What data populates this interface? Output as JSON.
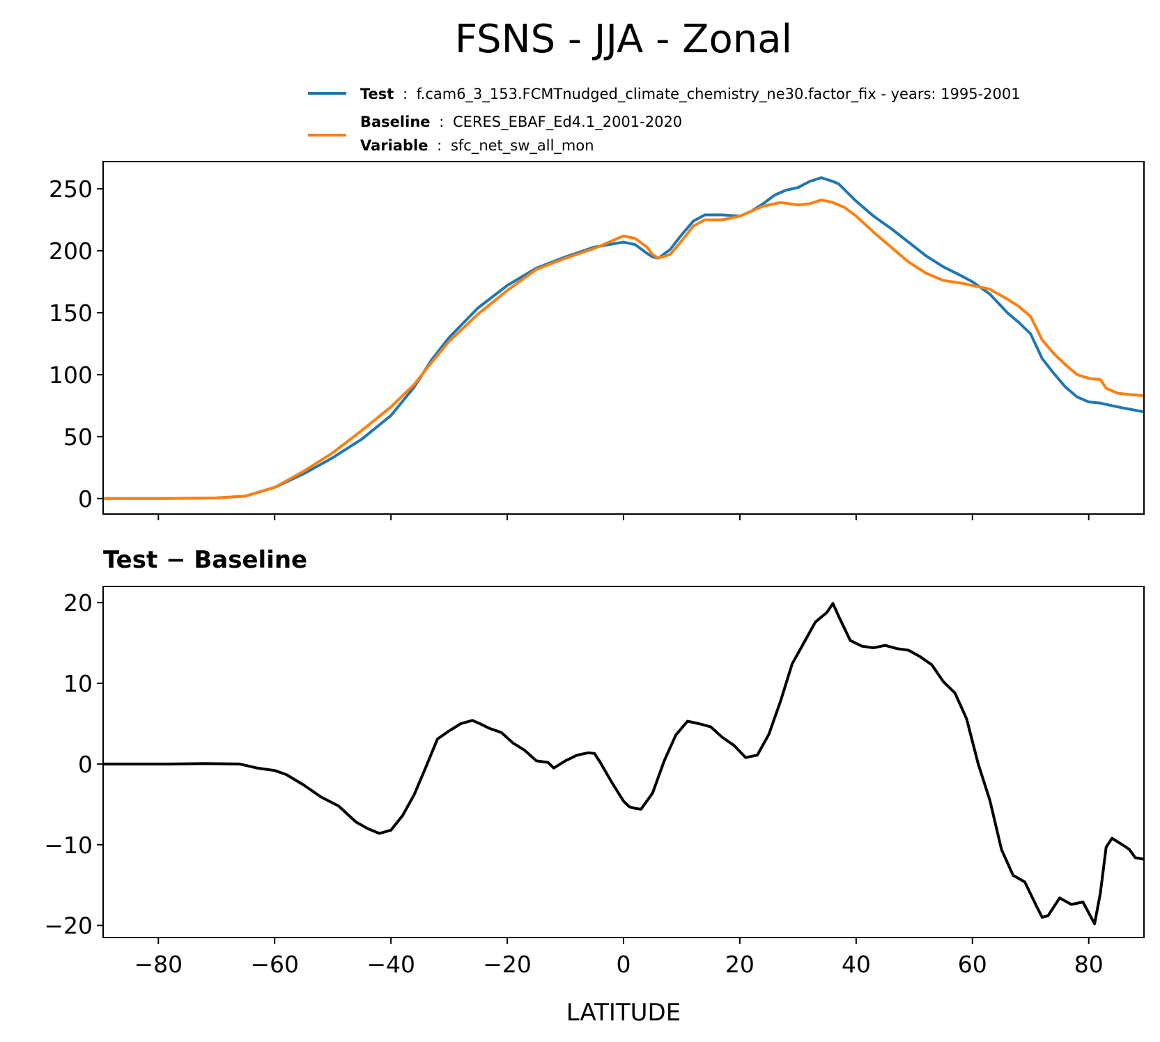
{
  "title": "FSNS - JJA - Zonal",
  "legend": {
    "test_label": "Test",
    "test_value": "f.cam6_3_153.FCMTnudged_climate_chemistry_ne30.factor_fix - years: 1995-2001",
    "baseline_label": "Baseline",
    "baseline_value": "CERES_EBAF_Ed4.1_2001-2020",
    "variable_label": "Variable",
    "variable_value": "sfc_net_sw_all_mon",
    "separator": ":"
  },
  "colors": {
    "test": "#1f77b4",
    "baseline": "#ff7f0e",
    "diff": "#000000"
  },
  "chart_data": [
    {
      "type": "line",
      "title": "",
      "xlabel": "",
      "ylabel": "",
      "xlim": [
        -89.5,
        89.5
      ],
      "ylim": [
        -12.5,
        272
      ],
      "yticks": [
        0,
        50,
        100,
        150,
        200,
        250
      ],
      "ytick_labels": [
        "0",
        "50",
        "100",
        "150",
        "200",
        "250"
      ],
      "xticks": [
        -80,
        -60,
        -40,
        -20,
        0,
        20,
        40,
        60,
        80
      ],
      "grid": false,
      "legend_position": "top-right (above plot)",
      "series": [
        {
          "name": "Test",
          "color": "#1f77b4",
          "points": [
            [
              -89.5,
              0
            ],
            [
              -80,
              0
            ],
            [
              -70,
              0.5
            ],
            [
              -65,
              2
            ],
            [
              -60,
              9
            ],
            [
              -55,
              20
            ],
            [
              -50,
              33
            ],
            [
              -45,
              48
            ],
            [
              -40,
              67
            ],
            [
              -36,
              90
            ],
            [
              -33,
              112
            ],
            [
              -30,
              130
            ],
            [
              -25,
              154
            ],
            [
              -20,
              172
            ],
            [
              -15,
              186
            ],
            [
              -10,
              195
            ],
            [
              -5,
              203
            ],
            [
              0,
              207
            ],
            [
              2,
              205
            ],
            [
              4,
              198
            ],
            [
              5,
              195
            ],
            [
              6,
              194
            ],
            [
              8,
              201
            ],
            [
              10,
              213
            ],
            [
              12,
              224
            ],
            [
              14,
              229
            ],
            [
              17,
              229
            ],
            [
              20,
              228
            ],
            [
              22,
              232
            ],
            [
              24,
              238
            ],
            [
              26,
              245
            ],
            [
              28,
              249
            ],
            [
              30,
              251
            ],
            [
              32,
              256
            ],
            [
              34,
              259
            ],
            [
              36,
              256
            ],
            [
              37,
              254
            ],
            [
              40,
              240
            ],
            [
              43,
              228
            ],
            [
              46,
              218
            ],
            [
              49,
              207
            ],
            [
              52,
              196
            ],
            [
              55,
              187
            ],
            [
              58,
              180
            ],
            [
              60,
              175
            ],
            [
              63,
              165
            ],
            [
              66,
              150
            ],
            [
              68,
              142
            ],
            [
              70,
              133
            ],
            [
              72,
              113
            ],
            [
              74,
              101
            ],
            [
              76,
              90
            ],
            [
              78,
              82
            ],
            [
              80,
              78
            ],
            [
              82,
              77
            ],
            [
              84,
              75
            ],
            [
              86,
              73
            ],
            [
              89.5,
              70
            ]
          ]
        },
        {
          "name": "Baseline",
          "color": "#ff7f0e",
          "points": [
            [
              -89.5,
              0
            ],
            [
              -80,
              0
            ],
            [
              -70,
              0.5
            ],
            [
              -65,
              2
            ],
            [
              -60,
              9
            ],
            [
              -55,
              22
            ],
            [
              -50,
              37
            ],
            [
              -45,
              55
            ],
            [
              -40,
              74
            ],
            [
              -36,
              92
            ],
            [
              -33,
              110
            ],
            [
              -30,
              127
            ],
            [
              -25,
              149
            ],
            [
              -20,
              168
            ],
            [
              -15,
              185
            ],
            [
              -10,
              194
            ],
            [
              -5,
              202
            ],
            [
              -2,
              208
            ],
            [
              0,
              212
            ],
            [
              2,
              210
            ],
            [
              4,
              203
            ],
            [
              5,
              197
            ],
            [
              6,
              194
            ],
            [
              8,
              197
            ],
            [
              10,
              208
            ],
            [
              12,
              220
            ],
            [
              14,
              225
            ],
            [
              17,
              225
            ],
            [
              20,
              228
            ],
            [
              22,
              232
            ],
            [
              24,
              236
            ],
            [
              27,
              239
            ],
            [
              30,
              237
            ],
            [
              32,
              238
            ],
            [
              34,
              241
            ],
            [
              36,
              239
            ],
            [
              38,
              235
            ],
            [
              40,
              228
            ],
            [
              43,
              215
            ],
            [
              46,
              203
            ],
            [
              49,
              191
            ],
            [
              52,
              182
            ],
            [
              55,
              176
            ],
            [
              58,
              174
            ],
            [
              60,
              172
            ],
            [
              63,
              169
            ],
            [
              66,
              161
            ],
            [
              68,
              155
            ],
            [
              70,
              147
            ],
            [
              72,
              128
            ],
            [
              74,
              117
            ],
            [
              76,
              108
            ],
            [
              78,
              100
            ],
            [
              80,
              97
            ],
            [
              82,
              96
            ],
            [
              83,
              89
            ],
            [
              85,
              85
            ],
            [
              87,
              84
            ],
            [
              89.5,
              83
            ]
          ]
        }
      ]
    },
    {
      "type": "line",
      "title": "Test − Baseline",
      "xlabel": "LATITUDE",
      "ylabel": "",
      "xlim": [
        -89.5,
        89.5
      ],
      "ylim": [
        -21.5,
        22
      ],
      "yticks": [
        -20,
        -10,
        0,
        10,
        20
      ],
      "ytick_labels": [
        "−20",
        "−10",
        "0",
        "10",
        "20"
      ],
      "xticks": [
        -80,
        -60,
        -40,
        -20,
        0,
        20,
        40,
        60,
        80
      ],
      "xtick_labels": [
        "−80",
        "−60",
        "−40",
        "−20",
        "0",
        "20",
        "40",
        "60",
        "80"
      ],
      "grid": false,
      "series": [
        {
          "color": "#000000",
          "points": [
            [
              -89.5,
              0
            ],
            [
              -78,
              0
            ],
            [
              -72,
              0.05
            ],
            [
              -66,
              0
            ],
            [
              -63,
              -0.5
            ],
            [
              -60,
              -0.8
            ],
            [
              -58,
              -1.3
            ],
            [
              -55,
              -2.6
            ],
            [
              -52,
              -4.1
            ],
            [
              -49,
              -5.2
            ],
            [
              -46,
              -7.2
            ],
            [
              -44,
              -8
            ],
            [
              -42,
              -8.6
            ],
            [
              -40,
              -8.2
            ],
            [
              -38,
              -6.4
            ],
            [
              -36,
              -3.8
            ],
            [
              -34,
              -0.4
            ],
            [
              -32,
              3.1
            ],
            [
              -30,
              4.1
            ],
            [
              -28,
              5
            ],
            [
              -26,
              5.4
            ],
            [
              -25,
              5.1
            ],
            [
              -23,
              4.4
            ],
            [
              -21,
              3.9
            ],
            [
              -19,
              2.6
            ],
            [
              -17,
              1.7
            ],
            [
              -15,
              0.4
            ],
            [
              -13,
              0.2
            ],
            [
              -12,
              -0.5
            ],
            [
              -10,
              0.4
            ],
            [
              -8,
              1.1
            ],
            [
              -6,
              1.4
            ],
            [
              -5,
              1.3
            ],
            [
              -4,
              0.2
            ],
            [
              -2,
              -2.3
            ],
            [
              0,
              -4.6
            ],
            [
              1,
              -5.3
            ],
            [
              2,
              -5.5
            ],
            [
              3,
              -5.6
            ],
            [
              5,
              -3.6
            ],
            [
              7,
              0.4
            ],
            [
              9,
              3.6
            ],
            [
              11,
              5.3
            ],
            [
              13,
              5
            ],
            [
              15,
              4.6
            ],
            [
              17,
              3.3
            ],
            [
              19,
              2.3
            ],
            [
              21,
              0.8
            ],
            [
              23,
              1.1
            ],
            [
              25,
              3.7
            ],
            [
              27,
              7.8
            ],
            [
              29,
              12.4
            ],
            [
              31,
              15
            ],
            [
              33,
              17.6
            ],
            [
              35,
              18.8
            ],
            [
              36,
              19.9
            ],
            [
              37,
              18.3
            ],
            [
              39,
              15.3
            ],
            [
              41,
              14.6
            ],
            [
              43,
              14.4
            ],
            [
              45,
              14.7
            ],
            [
              47,
              14.3
            ],
            [
              49,
              14.1
            ],
            [
              51,
              13.3
            ],
            [
              53,
              12.3
            ],
            [
              55,
              10.2
            ],
            [
              57,
              8.8
            ],
            [
              59,
              5.6
            ],
            [
              61,
              0
            ],
            [
              63,
              -4.5
            ],
            [
              65,
              -10.6
            ],
            [
              67,
              -13.8
            ],
            [
              69,
              -14.6
            ],
            [
              71,
              -17.6
            ],
            [
              72,
              -19
            ],
            [
              73,
              -18.8
            ],
            [
              75,
              -16.6
            ],
            [
              77,
              -17.4
            ],
            [
              79,
              -17.1
            ],
            [
              81,
              -19.8
            ],
            [
              82,
              -16
            ],
            [
              83,
              -10.3
            ],
            [
              84,
              -9.2
            ],
            [
              86,
              -10.1
            ],
            [
              87,
              -10.6
            ],
            [
              88,
              -11.6
            ],
            [
              89.5,
              -11.8
            ]
          ]
        }
      ]
    }
  ]
}
